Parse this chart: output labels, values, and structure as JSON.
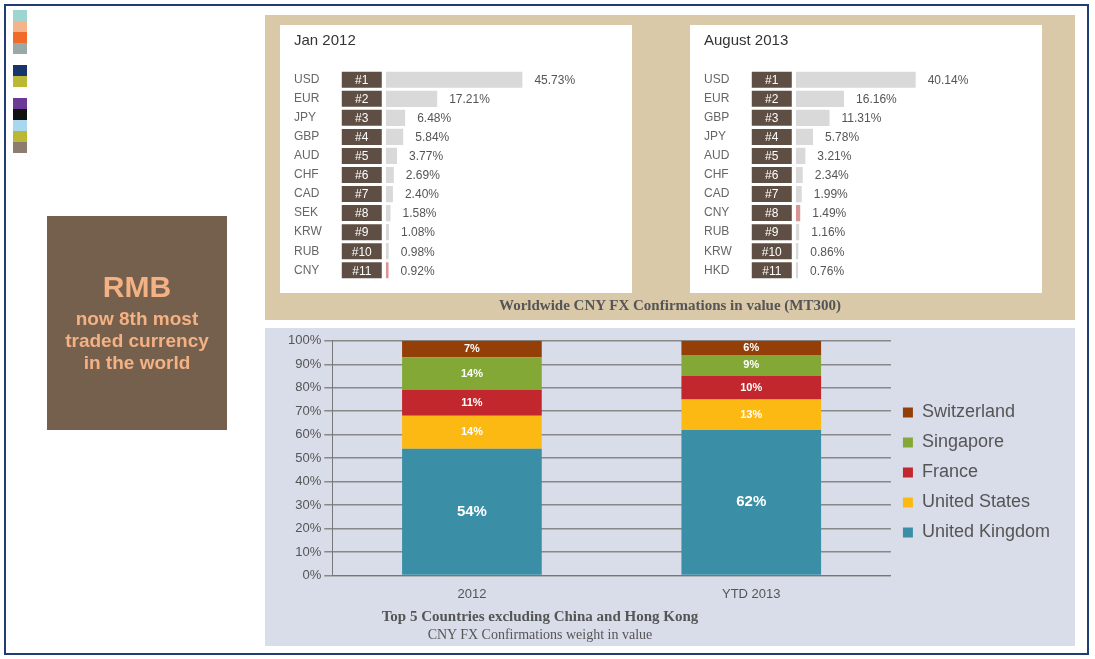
{
  "chart_data": [
    {
      "type": "bar",
      "orientation": "horizontal",
      "title": "Jan 2012",
      "categories": [
        "USD",
        "EUR",
        "JPY",
        "GBP",
        "AUD",
        "CHF",
        "CAD",
        "SEK",
        "KRW",
        "RUB",
        "CNY"
      ],
      "values": [
        45.73,
        17.21,
        6.48,
        5.84,
        3.77,
        2.69,
        2.4,
        1.58,
        1.08,
        0.98,
        0.92
      ],
      "value_labels": [
        "45.73%",
        "17.21%",
        "6.48%",
        "5.84%",
        "3.77%",
        "2.69%",
        "2.40%",
        "1.58%",
        "1.08%",
        "0.98%",
        "0.92%"
      ],
      "colors": [
        "#d9d9d9",
        "#d9d9d9",
        "#d9d9d9",
        "#d9d9d9",
        "#d9d9d9",
        "#d9d9d9",
        "#d9d9d9",
        "#d9d9d9",
        "#d9d9d9",
        "#d9d9d9",
        "#d99594"
      ],
      "annotations": [
        "#1",
        "#2",
        "#3",
        "#4",
        "#5",
        "#6",
        "#7",
        "#8",
        "#9",
        "#10",
        "#11"
      ]
    },
    {
      "type": "bar",
      "orientation": "horizontal",
      "title": "August 2013",
      "categories": [
        "USD",
        "EUR",
        "GBP",
        "JPY",
        "AUD",
        "CHF",
        "CAD",
        "CNY",
        "RUB",
        "KRW",
        "HKD"
      ],
      "values": [
        40.14,
        16.16,
        11.31,
        5.78,
        3.21,
        2.34,
        1.99,
        1.49,
        1.16,
        0.86,
        0.76
      ],
      "value_labels": [
        "40.14%",
        "16.16%",
        "11.31%",
        "5.78%",
        "3.21%",
        "2.34%",
        "1.99%",
        "1.49%",
        "1.16%",
        "0.86%",
        "0.76%"
      ],
      "colors": [
        "#d9d9d9",
        "#d9d9d9",
        "#d9d9d9",
        "#d9d9d9",
        "#d9d9d9",
        "#d9d9d9",
        "#d9d9d9",
        "#d99594",
        "#d9d9d9",
        "#d9d9d9",
        "#d9d9d9"
      ],
      "annotations": [
        "#1",
        "#2",
        "#3",
        "#4",
        "#5",
        "#6",
        "#7",
        "#8",
        "#9",
        "#10",
        "#11",
        "Worldwide CNY FX Confirmations in value (MT300)"
      ]
    },
    {
      "type": "bar",
      "stacked": true,
      "title": "Top 5 Countries excluding China and Hong Kong",
      "subtitle": "CNY FX Confirmations weight in value",
      "categories": [
        "2012",
        "YTD 2013"
      ],
      "series": [
        {
          "name": "United Kingdom",
          "color": "#3a8fa6",
          "values": [
            54,
            62
          ],
          "value_labels": [
            "54%",
            "62%"
          ]
        },
        {
          "name": "United States",
          "color": "#fdb913",
          "values": [
            14,
            13
          ],
          "value_labels": [
            "14%",
            "13%"
          ]
        },
        {
          "name": "France",
          "color": "#c1272d",
          "values": [
            11,
            10
          ],
          "value_labels": [
            "11%",
            "10%"
          ]
        },
        {
          "name": "Singapore",
          "color": "#83a836",
          "values": [
            14,
            9
          ],
          "value_labels": [
            "14%",
            "9%"
          ]
        },
        {
          "name": "Switzerland",
          "color": "#943f07",
          "values": [
            7,
            6
          ],
          "value_labels": [
            "7%",
            "6%"
          ]
        }
      ],
      "ylim": [
        0,
        100
      ],
      "yticks": [
        {
          "value": 0,
          "label": "0%"
        },
        {
          "value": 10,
          "label": "10%"
        },
        {
          "value": 20,
          "label": "20%"
        },
        {
          "value": 30,
          "label": "30%"
        },
        {
          "value": 40,
          "label": "40%"
        },
        {
          "value": 50,
          "label": "50%"
        },
        {
          "value": 60,
          "label": "60%"
        },
        {
          "value": 70,
          "label": "70%"
        },
        {
          "value": 80,
          "label": "80%"
        },
        {
          "value": 90,
          "label": "90%"
        },
        {
          "value": 100,
          "label": "100%"
        }
      ],
      "grid": "y",
      "legend": "right"
    },
    {
      "type": "other",
      "title": "RMB",
      "subtitle": "now 8th most traded currency in the world"
    }
  ]
}
